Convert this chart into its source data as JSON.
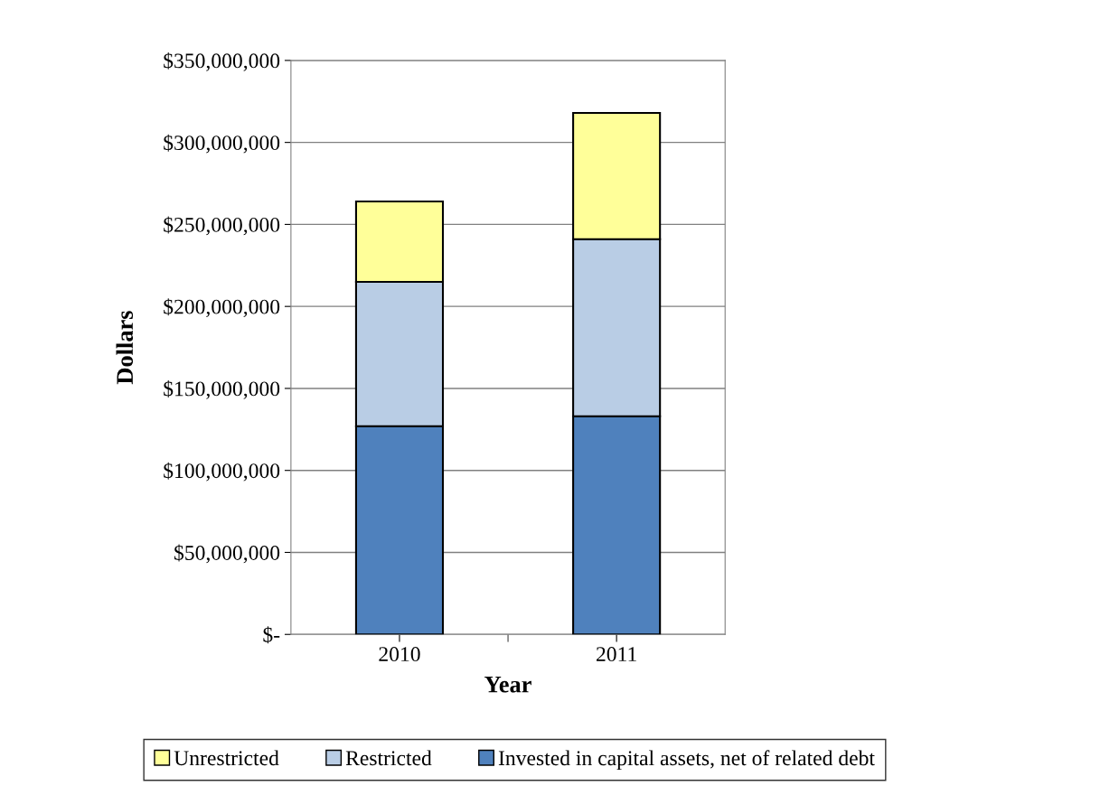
{
  "chart_data": {
    "type": "bar",
    "stacked": true,
    "xlabel": "Year",
    "ylabel": "Dollars",
    "categories": [
      "2010",
      "2011"
    ],
    "series": [
      {
        "name": "Invested in capital assets, net of related debt",
        "color": "#4f81bd",
        "values": [
          127000000,
          133000000
        ]
      },
      {
        "name": "Restricted",
        "color": "#b9cde5",
        "values": [
          88000000,
          108000000
        ]
      },
      {
        "name": "Unrestricted",
        "color": "#ffff99",
        "values": [
          49000000,
          77000000
        ]
      }
    ],
    "ylim": [
      0,
      350000000
    ],
    "yticks": [
      {
        "value": 0,
        "label": "$-"
      },
      {
        "value": 50000000,
        "label": "$50,000,000"
      },
      {
        "value": 100000000,
        "label": "$100,000,000"
      },
      {
        "value": 150000000,
        "label": "$150,000,000"
      },
      {
        "value": 200000000,
        "label": "$200,000,000"
      },
      {
        "value": 250000000,
        "label": "$250,000,000"
      },
      {
        "value": 300000000,
        "label": "$300,000,000"
      },
      {
        "value": 350000000,
        "label": "$350,000,000"
      }
    ],
    "grid": "y",
    "legend": "bottom"
  }
}
